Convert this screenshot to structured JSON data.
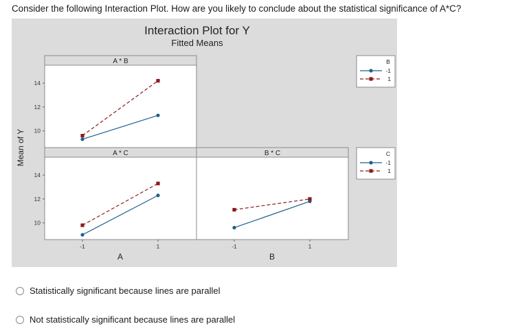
{
  "question": "Consider the following Interaction Plot. How are you likely to conclude about the statistical significance of A*C?",
  "options": [
    {
      "label": "Statistically significant because lines are parallel"
    },
    {
      "label": "Not statistically significant because lines are parallel"
    }
  ],
  "chart_data": {
    "type": "line",
    "title": "Interaction Plot for Y",
    "subtitle": "Fitted Means",
    "ylabel": "Mean of Y",
    "ylim": [
      8.6,
      15.5
    ],
    "yticks": [
      "10",
      "12",
      "14"
    ],
    "xticks": [
      "-1",
      "1"
    ],
    "xlabels": [
      "A",
      "B"
    ],
    "panels": [
      {
        "title": "A * B",
        "row": 0,
        "col": 0,
        "x": [
          -1,
          1
        ],
        "series": [
          {
            "legend": "B",
            "level": "-1",
            "values": [
              9.3,
              11.3
            ]
          },
          {
            "legend": "B",
            "level": "1",
            "values": [
              9.6,
              14.2
            ]
          }
        ]
      },
      {
        "title": "A * C",
        "row": 1,
        "col": 0,
        "x": [
          -1,
          1
        ],
        "series": [
          {
            "legend": "C",
            "level": "-1",
            "values": [
              9.0,
              12.3
            ]
          },
          {
            "legend": "C",
            "level": "1",
            "values": [
              9.8,
              13.3
            ]
          }
        ]
      },
      {
        "title": "B * C",
        "row": 1,
        "col": 1,
        "x": [
          -1,
          1
        ],
        "series": [
          {
            "legend": "C",
            "level": "-1",
            "values": [
              9.6,
              11.8
            ]
          },
          {
            "legend": "C",
            "level": "1",
            "values": [
              11.1,
              12.0
            ]
          }
        ]
      }
    ],
    "legends": [
      {
        "title": "B",
        "entries": [
          "-1",
          "1"
        ]
      },
      {
        "title": "C",
        "entries": [
          "-1",
          "1"
        ]
      }
    ],
    "colors": {
      "level_minus1": "#1f5f8b",
      "level_plus1": "#8b1a1a",
      "plot_bg": "#ffffff",
      "figure_bg": "#dcdcdc"
    }
  }
}
